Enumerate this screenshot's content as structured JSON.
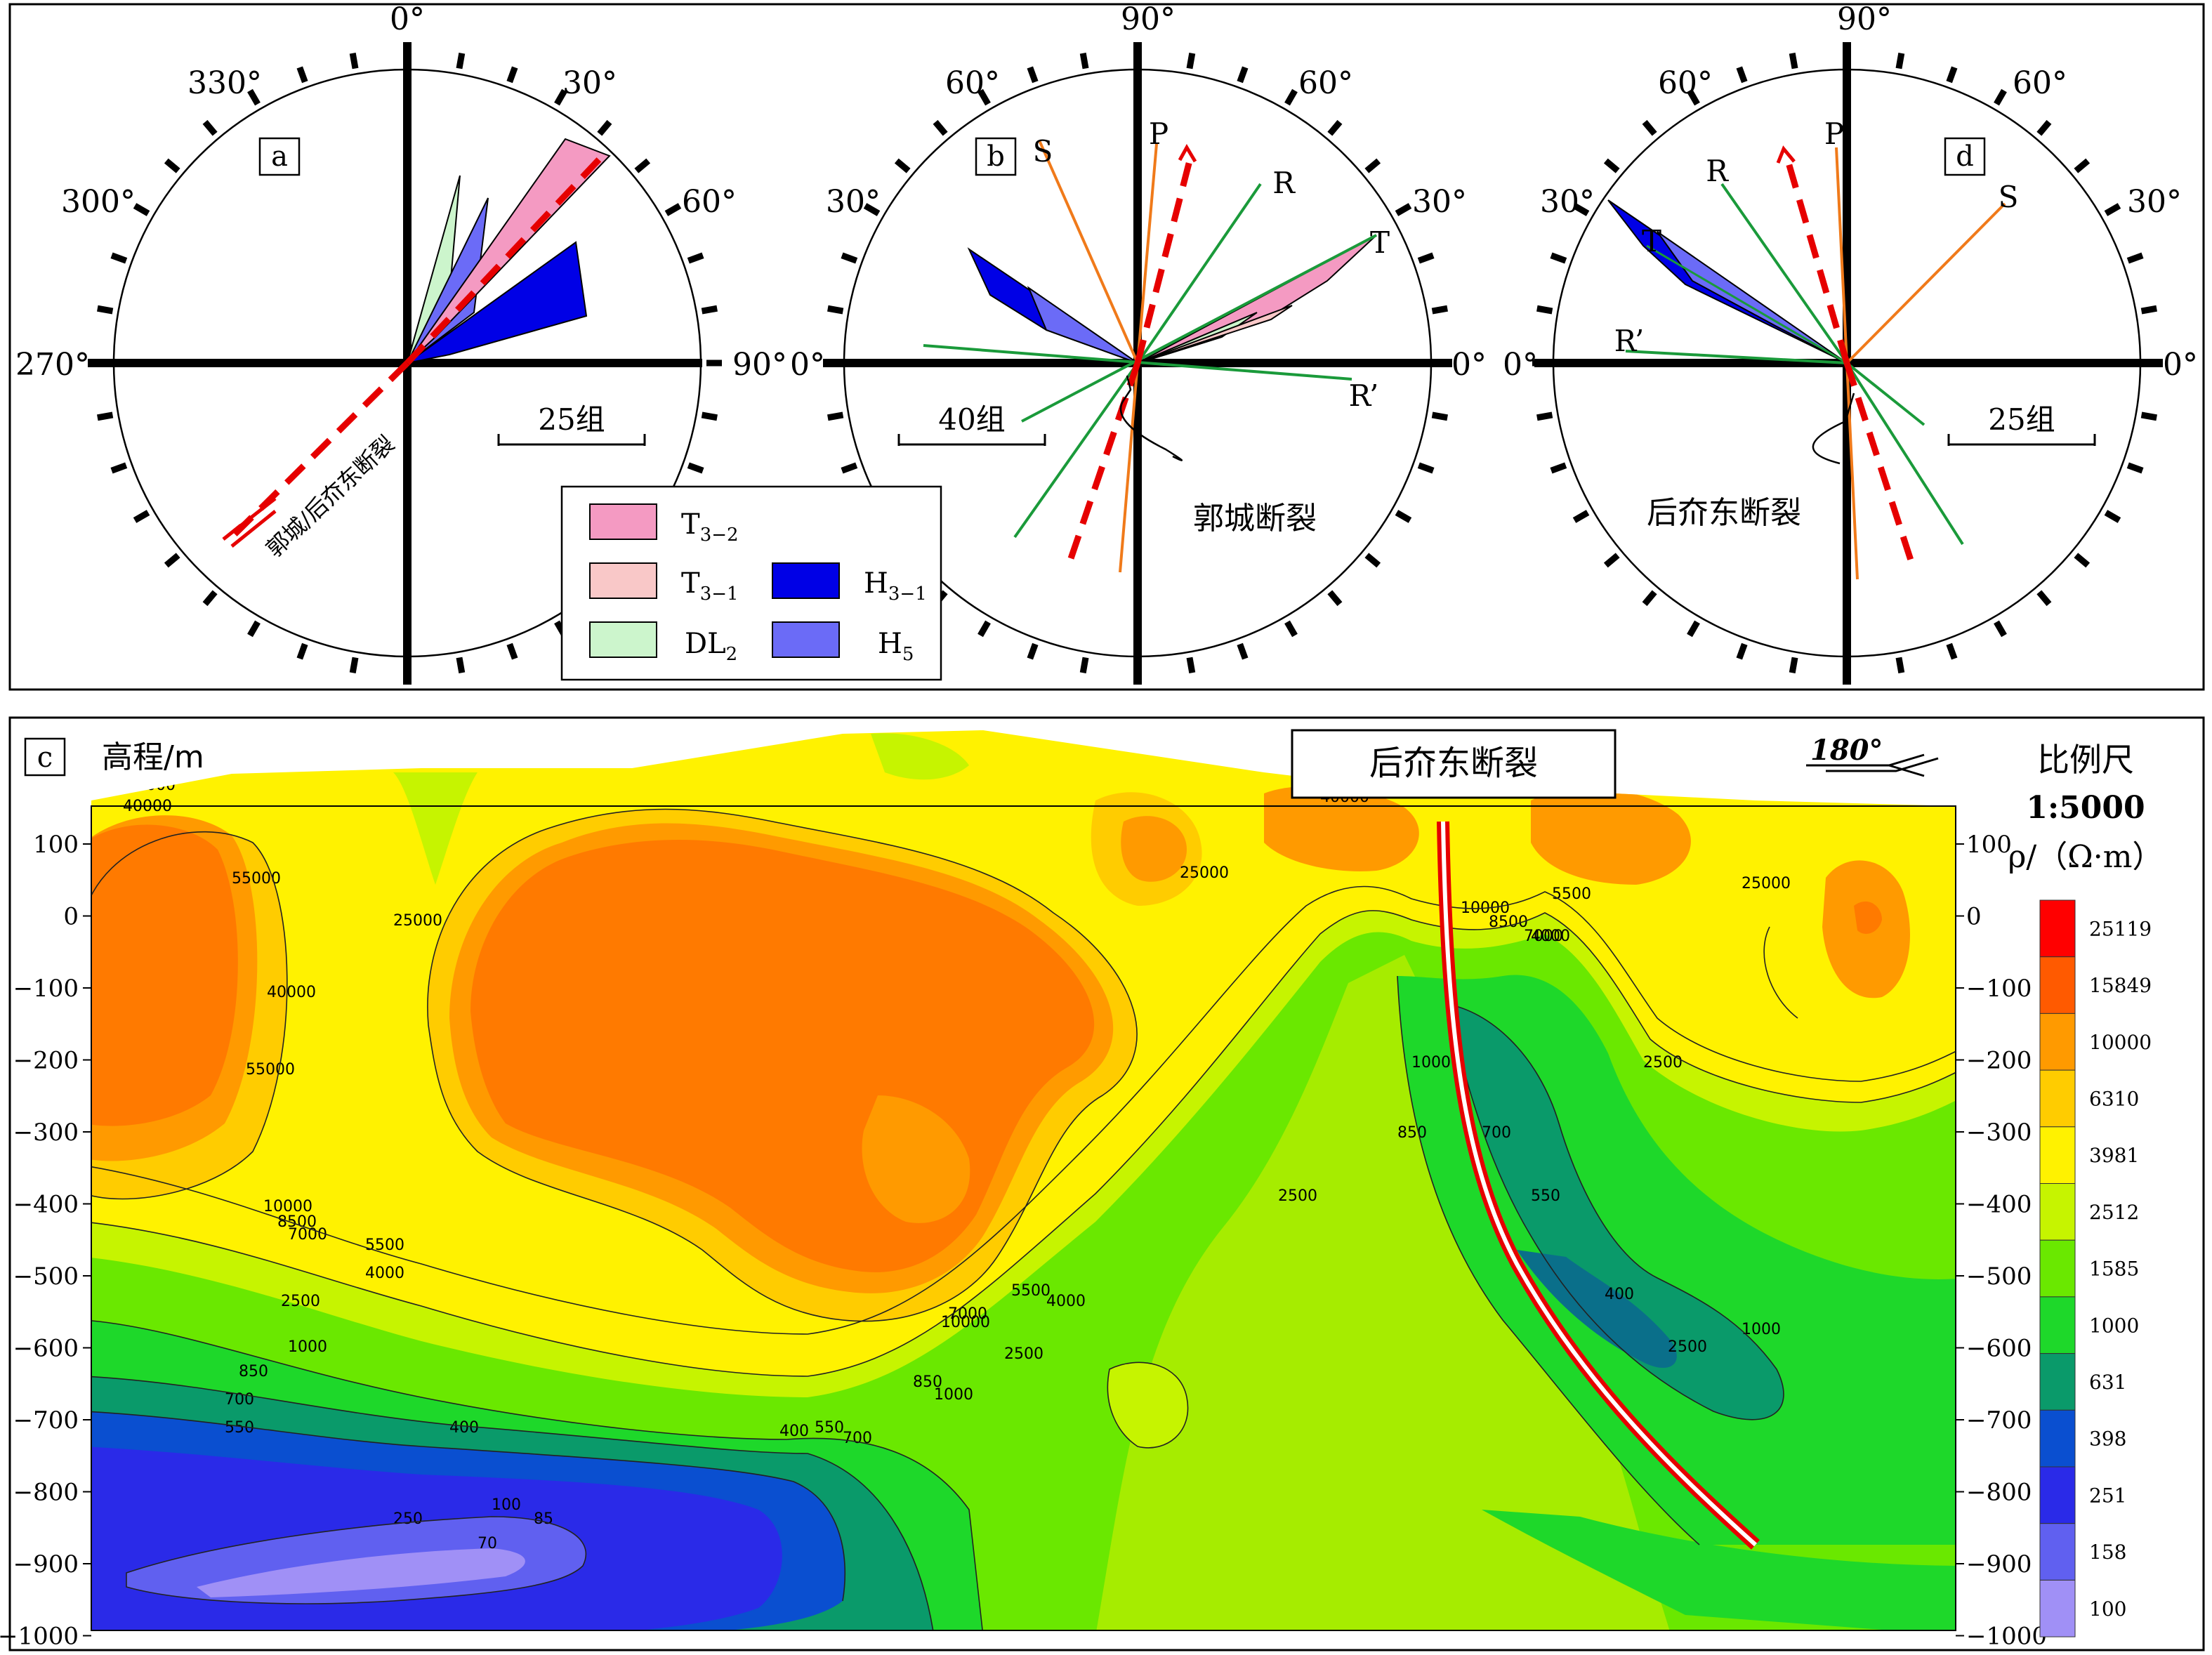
{
  "top_panel": {
    "a": {
      "label": "a",
      "angles": {
        "top": "0°",
        "r30": "30°",
        "r60": "60°",
        "right": "90°",
        "left": "270°",
        "l300": "300°",
        "l330": "330°"
      },
      "scale": "25组",
      "fault_name": "郭城/后夼东断裂"
    },
    "b": {
      "label": "b",
      "angles": {
        "top": "90°",
        "l60": "60°",
        "r60": "60°",
        "l30": "30°",
        "r30": "30°",
        "left": "0°",
        "right": "0°"
      },
      "scale": "40组",
      "fault_name": "郭城断裂",
      "lines": {
        "S": "S",
        "P": "P",
        "R": "R",
        "T": "T",
        "R2": "R’"
      }
    },
    "d": {
      "label": "d",
      "angles": {
        "top": "90°",
        "l60": "60°",
        "r60": "60°",
        "l30": "30°",
        "r30": "30°",
        "left": "0°",
        "right": "0°"
      },
      "scale": "25组",
      "fault_name": "后夼东断裂",
      "lines": {
        "S": "S",
        "P": "P",
        "R": "R",
        "T": "T",
        "R2": "R’"
      }
    },
    "legend": [
      {
        "main": "T",
        "sub": "3−2",
        "color": "#f49ac2"
      },
      {
        "main": "T",
        "sub": "3−1",
        "color": "#f9c8c8"
      },
      {
        "main": "DL",
        "sub": "2",
        "color": "#ccf5cc"
      },
      {
        "main": "H",
        "sub": "3−1",
        "color": "#0000e6"
      },
      {
        "main": "H",
        "sub": "5",
        "color": "#6b6bf7"
      }
    ]
  },
  "bottom_panel": {
    "label": "c",
    "y_title": "高程/m",
    "fault_name": "后夼东断裂",
    "azimuth": "180°",
    "scale_title": "比例尺",
    "scale_value": "1:5000",
    "rho_label": "ρ/（Ω·m）",
    "y_ticks": [
      "100",
      "0",
      "−100",
      "−200",
      "−300",
      "−400",
      "−500",
      "−600",
      "−700",
      "−800",
      "−900",
      "−1000"
    ],
    "colorbar": [
      {
        "label": "25119",
        "color": "#ff0000"
      },
      {
        "label": "15849",
        "color": "#ff5a00"
      },
      {
        "label": "10000",
        "color": "#ff9a00"
      },
      {
        "label": "6310",
        "color": "#ffcc00"
      },
      {
        "label": "3981",
        "color": "#fff200"
      },
      {
        "label": "2512",
        "color": "#c6f400"
      },
      {
        "label": "1585",
        "color": "#6ae800"
      },
      {
        "label": "1000",
        "color": "#1ed82a"
      },
      {
        "label": "631",
        "color": "#0a9a6a"
      },
      {
        "label": "398",
        "color": "#0a4fd0"
      },
      {
        "label": "251",
        "color": "#2a2ae8"
      },
      {
        "label": "158",
        "color": "#6060f0"
      },
      {
        "label": "100",
        "color": "#a090f6"
      }
    ],
    "contour_labels": [
      "25000",
      "40000",
      "55000",
      "25000",
      "40000",
      "55000",
      "10000",
      "8500",
      "7000",
      "5500",
      "4000",
      "2500",
      "1000",
      "850",
      "700",
      "550",
      "400",
      "250",
      "100",
      "85",
      "70",
      "7000",
      "10000",
      "5500",
      "4000",
      "2500",
      "1000",
      "850",
      "700",
      "550",
      "400",
      "2500",
      "1000",
      "850",
      "700",
      "550",
      "400",
      "2500",
      "1000",
      "25000",
      "40000",
      "25000",
      "10000",
      "8500",
      "7000",
      "5500",
      "4000",
      "2500"
    ]
  }
}
